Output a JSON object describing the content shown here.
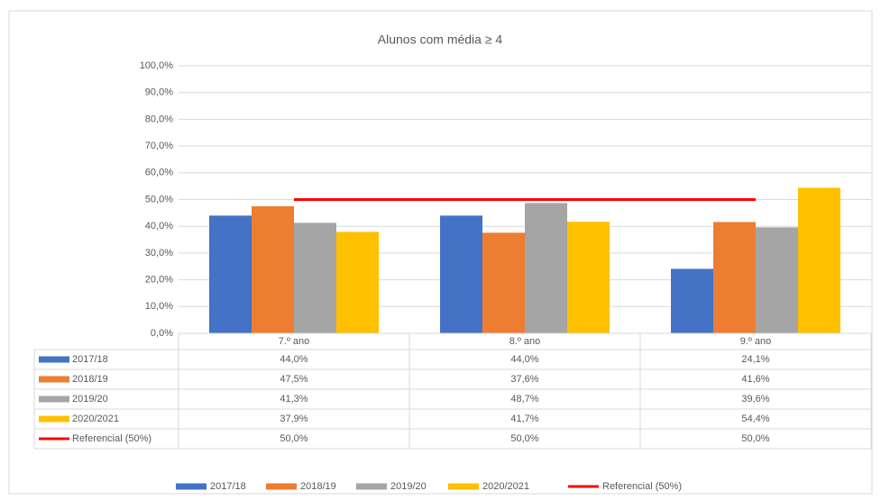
{
  "chart_data": {
    "type": "bar",
    "title": "Alunos com média ≥ 4",
    "categories": [
      "7.º ano",
      "8.º ano",
      "9.º ano"
    ],
    "ylim": [
      0,
      100
    ],
    "yticks": [
      {
        "value": 0,
        "label": "0,0%"
      },
      {
        "value": 10,
        "label": "10,0%"
      },
      {
        "value": 20,
        "label": "20,0%"
      },
      {
        "value": 30,
        "label": "30,0%"
      },
      {
        "value": 40,
        "label": "40,0%"
      },
      {
        "value": 50,
        "label": "50,0%"
      },
      {
        "value": 60,
        "label": "60,0%"
      },
      {
        "value": 70,
        "label": "70,0%"
      },
      {
        "value": 80,
        "label": "80,0%"
      },
      {
        "value": 90,
        "label": "90,0%"
      },
      {
        "value": 100,
        "label": "100,0%"
      }
    ],
    "grid": true,
    "legend": "bottom",
    "series": [
      {
        "name": "2017/18",
        "color": "#4472c4",
        "type": "bar",
        "values": [
          44.0,
          44.0,
          24.1
        ],
        "value_labels": [
          "44,0%",
          "44,0%",
          "24,1%"
        ]
      },
      {
        "name": "2018/19",
        "color": "#ed7d31",
        "type": "bar",
        "values": [
          47.5,
          37.6,
          41.6
        ],
        "value_labels": [
          "47,5%",
          "37,6%",
          "41,6%"
        ]
      },
      {
        "name": "2019/20",
        "color": "#a5a5a5",
        "type": "bar",
        "values": [
          41.3,
          48.7,
          39.6
        ],
        "value_labels": [
          "41,3%",
          "48,7%",
          "39,6%"
        ]
      },
      {
        "name": "2020/2021",
        "color": "#ffc000",
        "type": "bar",
        "values": [
          37.9,
          41.7,
          54.4
        ],
        "value_labels": [
          "37,9%",
          "41,7%",
          "54,4%"
        ]
      },
      {
        "name": "Referencial (50%)",
        "color": "#ff0000",
        "type": "line",
        "values": [
          50,
          50,
          50
        ],
        "value_labels": [
          "50,0%",
          "50,0%",
          "50,0%"
        ]
      }
    ]
  }
}
